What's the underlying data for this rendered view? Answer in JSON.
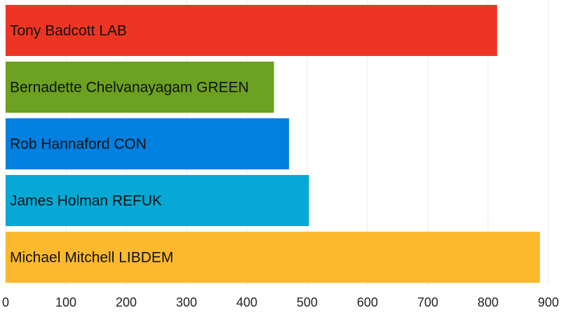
{
  "chart_data": {
    "type": "bar",
    "orientation": "horizontal",
    "categories": [
      "Tony Badcott LAB",
      "Bernadette Chelvanayagam GREEN",
      "Rob Hannaford CON",
      "James Holman REFUK",
      "Michael Mitchell LIBDEM"
    ],
    "values": [
      815,
      445,
      470,
      503,
      886
    ],
    "colors": [
      "#ee3524",
      "#6ca121",
      "#0080e1",
      "#06a9d6",
      "#fdb92d"
    ],
    "xlim": [
      0,
      900
    ],
    "xticks": [
      "0",
      "100",
      "200",
      "300",
      "400",
      "500",
      "600",
      "700",
      "800",
      "900"
    ],
    "grid": "vertical",
    "title": "",
    "xlabel": "",
    "ylabel": ""
  }
}
